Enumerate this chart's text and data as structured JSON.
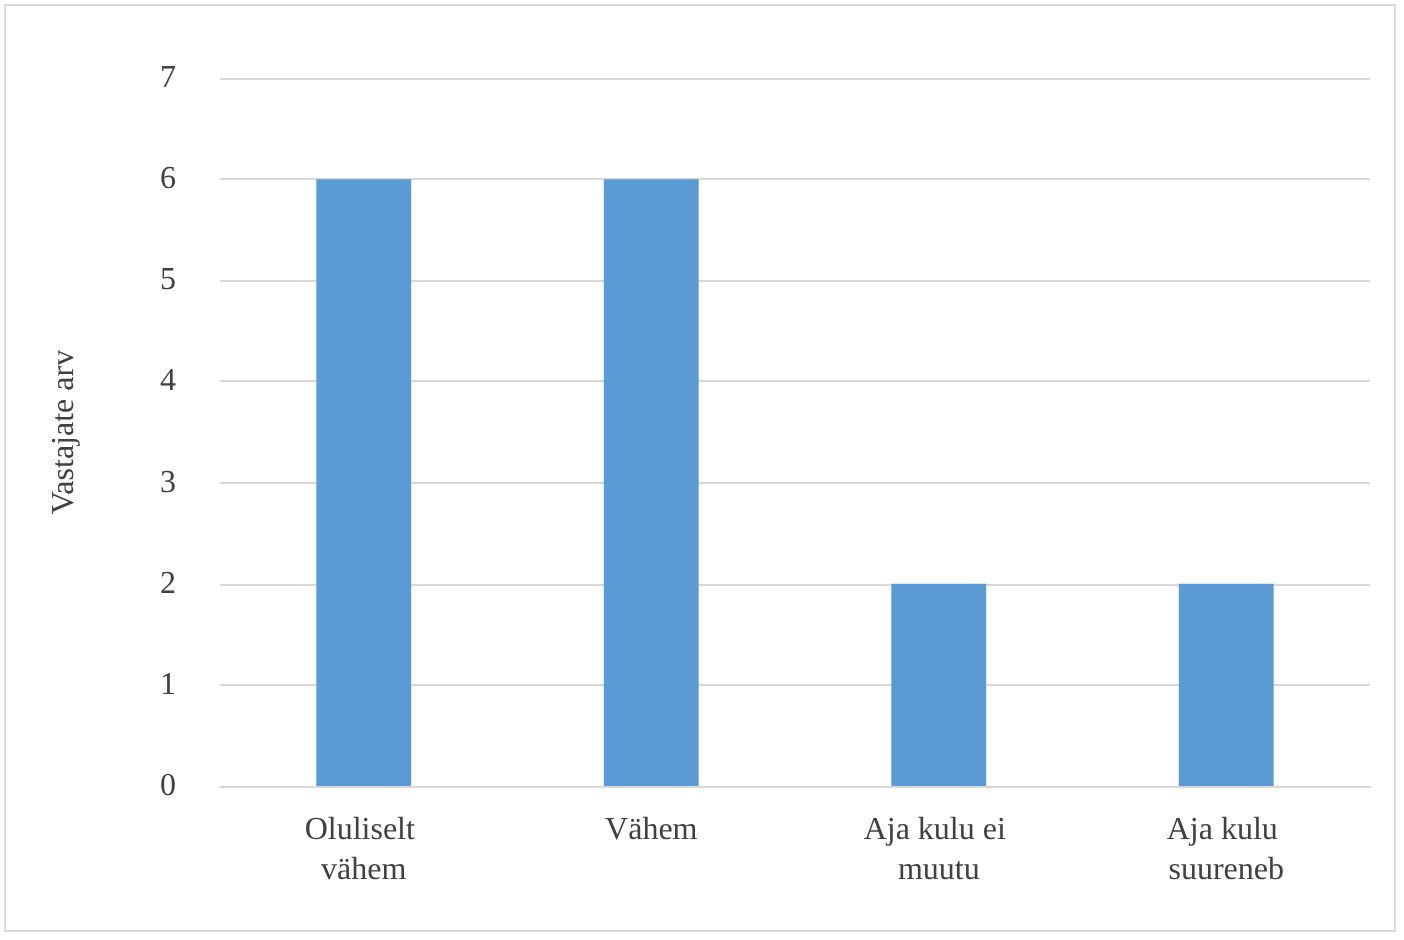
{
  "chart_data": {
    "type": "bar",
    "ylabel": "Vastajate arv",
    "categories": [
      "Oluliselt vähem",
      "Vähem",
      "Aja kulu ei muutu",
      "Aja kulu suureneb"
    ],
    "values": [
      6,
      6,
      2,
      2
    ],
    "color": "#5b9bd5",
    "ylim": [
      0,
      7
    ],
    "yticks": [
      0,
      1,
      2,
      3,
      4,
      5,
      6,
      7
    ],
    "grid": "y"
  }
}
